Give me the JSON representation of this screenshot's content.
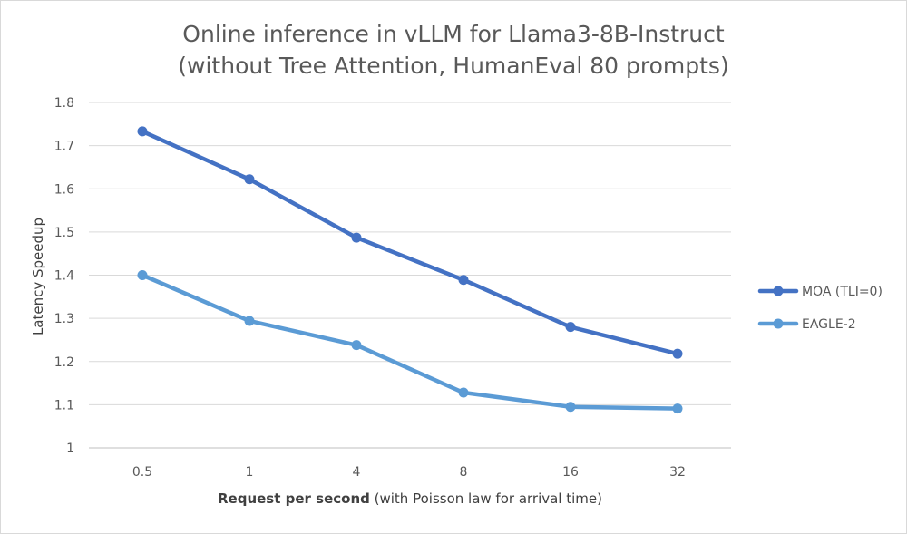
{
  "chart_data": {
    "type": "line",
    "title": "Online inference in vLLM for Llama3-8B-Instruct",
    "subtitle": "(without Tree Attention, HumanEval 80 prompts)",
    "xlabel_bold": "Request per second",
    "xlabel_rest": " (with Poisson law for arrival time)",
    "ylabel": "Latency Speedup",
    "categories": [
      "0.5",
      "1",
      "4",
      "8",
      "16",
      "32"
    ],
    "ylim": [
      1,
      1.8
    ],
    "yticks": [
      "1",
      "1.1",
      "1.2",
      "1.3",
      "1.4",
      "1.5",
      "1.6",
      "1.7",
      "1.8"
    ],
    "grid": true,
    "legend_position": "right",
    "series": [
      {
        "name": "MOA (TLI=0)",
        "color": "#4472c4",
        "values": [
          1.733,
          1.622,
          1.487,
          1.389,
          1.28,
          1.218
        ]
      },
      {
        "name": "EAGLE-2",
        "color": "#5b9bd5",
        "values": [
          1.4,
          1.294,
          1.238,
          1.128,
          1.095,
          1.091
        ]
      }
    ]
  }
}
